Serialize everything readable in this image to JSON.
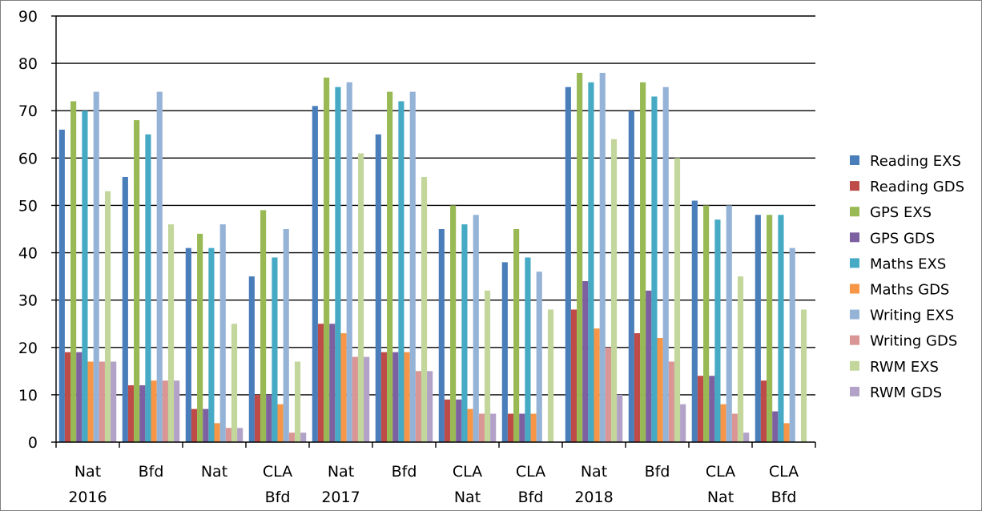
{
  "chart_data": {
    "type": "bar",
    "ylim": [
      0,
      90
    ],
    "yticks": [
      0,
      10,
      20,
      30,
      40,
      50,
      60,
      70,
      80,
      90
    ],
    "grid": true,
    "legend_position": "right",
    "categories": [
      [
        "Nat",
        "2016"
      ],
      [
        "Bfd",
        ""
      ],
      [
        "Nat",
        ""
      ],
      [
        "CLA",
        "Bfd"
      ],
      [
        "Nat",
        "2017"
      ],
      [
        "Bfd",
        ""
      ],
      [
        "CLA",
        "Nat"
      ],
      [
        "CLA",
        "Bfd"
      ],
      [
        "Nat",
        "2018"
      ],
      [
        "Bfd",
        ""
      ],
      [
        "CLA",
        "Nat"
      ],
      [
        "CLA",
        "Bfd"
      ]
    ],
    "series": [
      {
        "name": "Reading EXS",
        "color": "#4a7ebb",
        "values": [
          66,
          56,
          41,
          35,
          71,
          65,
          45,
          38,
          75,
          70,
          51,
          48
        ]
      },
      {
        "name": "Reading GDS",
        "color": "#be4b48",
        "values": [
          19,
          12,
          7,
          10,
          25,
          19,
          9,
          6,
          28,
          23,
          14,
          13
        ]
      },
      {
        "name": "GPS EXS",
        "color": "#98b954",
        "values": [
          72,
          68,
          44,
          49,
          77,
          74,
          50,
          45,
          78,
          76,
          50,
          48
        ]
      },
      {
        "name": "GPS GDS",
        "color": "#7d60a0",
        "values": [
          19,
          12,
          7,
          10,
          25,
          19,
          9,
          6,
          34,
          32,
          14,
          6.5
        ]
      },
      {
        "name": "Maths EXS",
        "color": "#46aac5",
        "values": [
          70,
          65,
          41,
          39,
          75,
          72,
          46,
          39,
          76,
          73,
          47,
          48
        ]
      },
      {
        "name": "Maths GDS",
        "color": "#f79646",
        "values": [
          17,
          13,
          4,
          8,
          23,
          19,
          7,
          6,
          24,
          22,
          8,
          4
        ]
      },
      {
        "name": "Writing EXS",
        "color": "#95b3d7",
        "values": [
          74,
          74,
          46,
          45,
          76,
          74,
          48,
          36,
          78,
          75,
          50,
          41
        ]
      },
      {
        "name": "Writing GDS",
        "color": "#d99694",
        "values": [
          17,
          13,
          3,
          2,
          18,
          15,
          6,
          0,
          20,
          17,
          6,
          0
        ]
      },
      {
        "name": "RWM EXS",
        "color": "#c3d69b",
        "values": [
          53,
          46,
          25,
          17,
          61,
          56,
          32,
          28,
          64,
          60,
          35,
          28
        ]
      },
      {
        "name": "RWM GDS",
        "color": "#b3a2c7",
        "values": [
          17,
          13,
          3,
          2,
          18,
          15,
          6,
          0,
          10,
          8,
          2,
          0
        ]
      }
    ]
  }
}
